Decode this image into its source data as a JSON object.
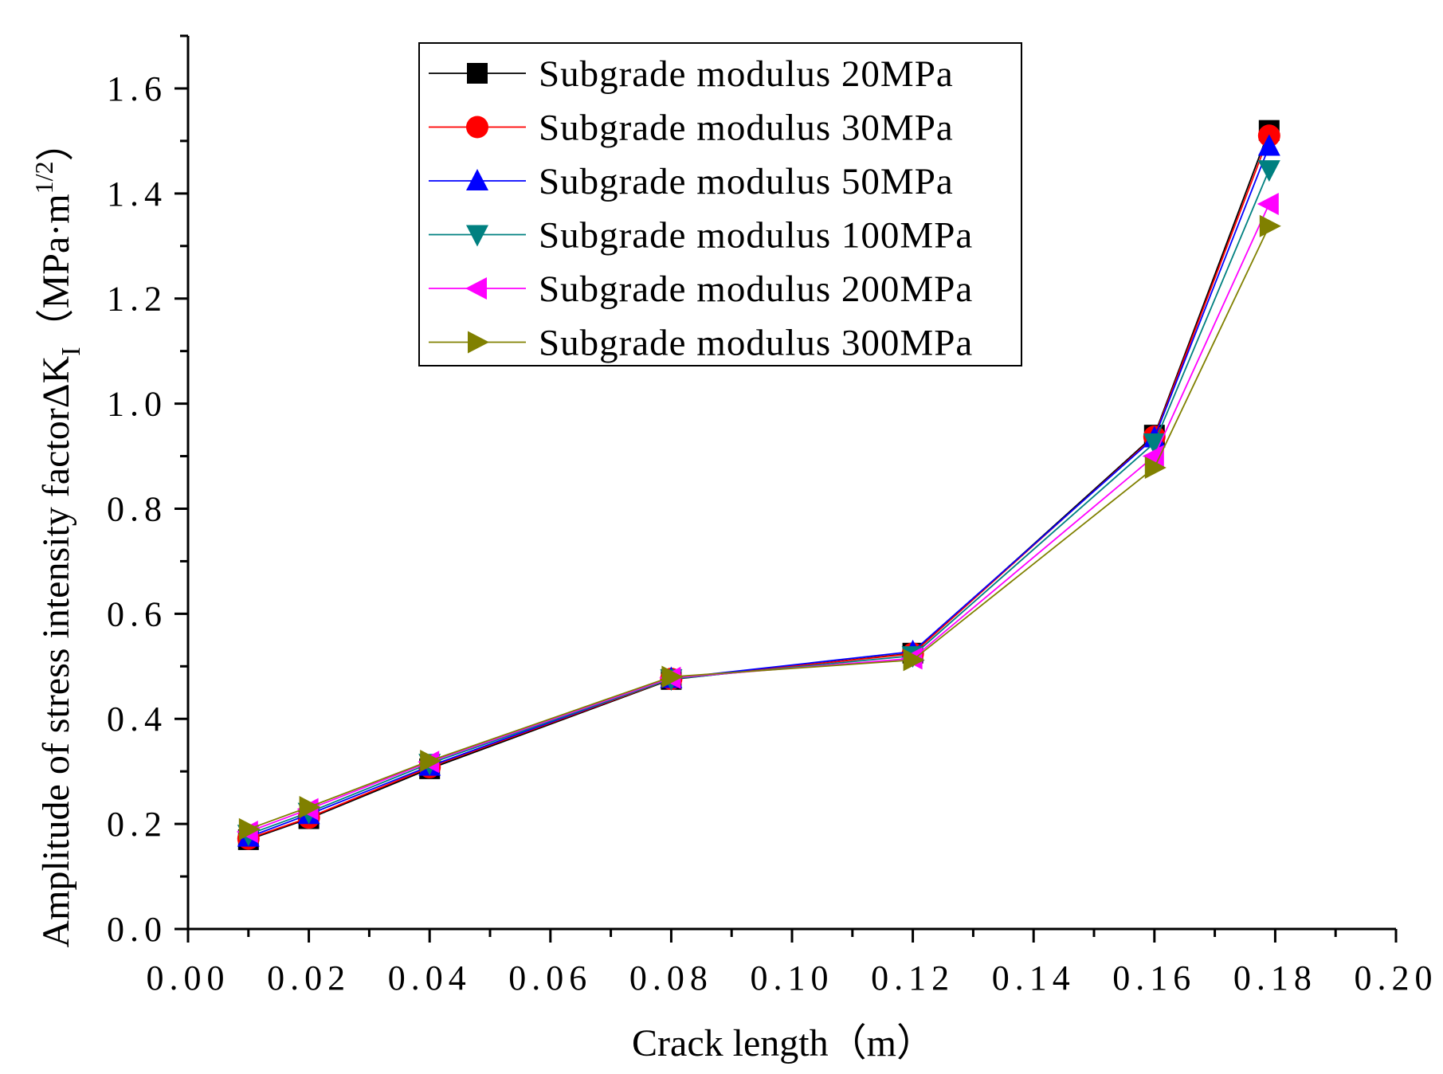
{
  "chart_data": {
    "type": "line",
    "xlabel": "Crack length（m）",
    "ylabel": "Amplitude of stress intensity factorΔK",
    "ylabel_subscript": "I",
    "ylabel_unit_open": "（MPa·m",
    "ylabel_unit_sup": "1/2",
    "ylabel_unit_close": "）",
    "xlim": [
      0.0,
      0.2
    ],
    "ylim": [
      0.0,
      1.7
    ],
    "x_ticks": [
      "0.00",
      "0.02",
      "0.04",
      "0.06",
      "0.08",
      "0.10",
      "0.12",
      "0.14",
      "0.16",
      "0.18",
      "0.20"
    ],
    "y_ticks": [
      "0.0",
      "0.2",
      "0.4",
      "0.6",
      "0.8",
      "1.0",
      "1.2",
      "1.4",
      "1.6"
    ],
    "grid": false,
    "legend_position": "top-center",
    "x": [
      0.01,
      0.02,
      0.04,
      0.08,
      0.12,
      0.16,
      0.179
    ],
    "series": [
      {
        "name": "Subgrade modulus 20MPa",
        "color": "#000000",
        "marker": "square",
        "values": [
          0.17,
          0.21,
          0.305,
          0.475,
          0.525,
          0.94,
          1.52
        ]
      },
      {
        "name": "Subgrade modulus 30MPa",
        "color": "#ff0000",
        "marker": "circle",
        "values": [
          0.172,
          0.212,
          0.308,
          0.476,
          0.524,
          0.937,
          1.51
        ]
      },
      {
        "name": "Subgrade modulus 50MPa",
        "color": "#0000ff",
        "marker": "triangle-up",
        "values": [
          0.175,
          0.218,
          0.31,
          0.477,
          0.528,
          0.935,
          1.49
        ]
      },
      {
        "name": "Subgrade modulus 100MPa",
        "color": "#008080",
        "marker": "triangle-down",
        "values": [
          0.18,
          0.222,
          0.315,
          0.476,
          0.52,
          0.925,
          1.445
        ]
      },
      {
        "name": "Subgrade modulus 200MPa",
        "color": "#ff00ff",
        "marker": "triangle-left",
        "values": [
          0.185,
          0.228,
          0.318,
          0.478,
          0.515,
          0.9,
          1.38
        ]
      },
      {
        "name": "Subgrade modulus 300MPa",
        "color": "#808000",
        "marker": "triangle-right",
        "values": [
          0.19,
          0.232,
          0.32,
          0.48,
          0.512,
          0.878,
          1.338
        ]
      }
    ]
  }
}
